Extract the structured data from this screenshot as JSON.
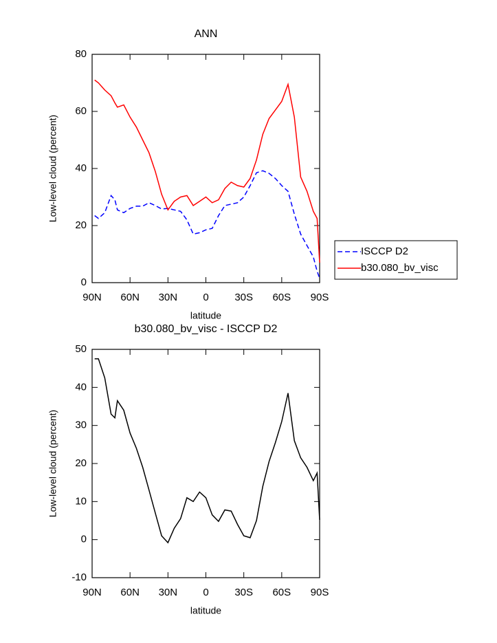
{
  "chart_data": [
    {
      "type": "line",
      "title": "ANN",
      "xlabel": "latitude",
      "ylabel": "Low-level cloud (percent)",
      "x": [
        88,
        85,
        80,
        75,
        72,
        70,
        65,
        60,
        55,
        50,
        45,
        40,
        35,
        30,
        25,
        20,
        15,
        10,
        5,
        0,
        -5,
        -10,
        -15,
        -20,
        -25,
        -30,
        -35,
        -40,
        -45,
        -50,
        -55,
        -60,
        -65,
        -70,
        -75,
        -80,
        -85,
        -88,
        -90
      ],
      "series": [
        {
          "name": "ISCCP D2",
          "color": "#0000ff",
          "line_style": "dashed",
          "values": [
            23.5,
            22.5,
            24.5,
            30.5,
            29,
            25.5,
            24.5,
            26,
            26.8,
            26.8,
            28,
            27,
            25.8,
            26,
            25.5,
            25,
            22,
            17,
            17.5,
            18.5,
            19,
            23.5,
            27,
            27.5,
            28,
            30,
            34,
            38.5,
            39.2,
            38.3,
            36.5,
            34,
            32,
            24,
            17,
            13,
            9,
            4,
            1.5
          ]
        },
        {
          "name": "b30.080_bv_visc",
          "color": "#ff0000",
          "line_style": "solid",
          "values": [
            71,
            70,
            67.5,
            65.5,
            63,
            61.5,
            62.3,
            58,
            54.5,
            50,
            45.5,
            39,
            31,
            25.5,
            28.5,
            30,
            30.5,
            27,
            28.5,
            30,
            28,
            29,
            33,
            35.2,
            34,
            33.5,
            36.5,
            43,
            52,
            57.5,
            60.5,
            63.5,
            69.5,
            58,
            37,
            32,
            25,
            22.5,
            7
          ]
        }
      ],
      "xlim": [
        90,
        -90
      ],
      "xticks": [
        {
          "value": 90,
          "label": "90N"
        },
        {
          "value": 60,
          "label": "60N"
        },
        {
          "value": 30,
          "label": "30N"
        },
        0,
        {
          "value": -30,
          "label": "30S"
        },
        {
          "value": -60,
          "label": "60S"
        },
        {
          "value": -90,
          "label": "90S"
        }
      ],
      "ylim": [
        0,
        80
      ],
      "yticks": [
        0,
        20,
        40,
        60,
        80
      ],
      "legend": "right"
    },
    {
      "type": "line",
      "title": "b30.080_bv_visc - ISCCP D2",
      "xlabel": "latitude",
      "ylabel": "Low-level cloud (percent)",
      "x": [
        88,
        85,
        80,
        75,
        72,
        70,
        65,
        60,
        55,
        50,
        45,
        40,
        35,
        30,
        25,
        20,
        15,
        10,
        5,
        0,
        -5,
        -10,
        -15,
        -20,
        -25,
        -30,
        -35,
        -40,
        -45,
        -50,
        -55,
        -60,
        -65,
        -70,
        -75,
        -80,
        -85,
        -88,
        -90
      ],
      "values": [
        47.5,
        47.5,
        42.5,
        33,
        32,
        36.5,
        34,
        28,
        24,
        19,
        13,
        7,
        1,
        -0.8,
        3,
        5.5,
        11,
        10,
        12.5,
        11,
        6.5,
        4.8,
        7.8,
        7.5,
        4,
        1,
        0.5,
        5,
        14,
        20.5,
        25.5,
        31,
        38.5,
        26,
        21.5,
        19,
        15.5,
        17.5,
        5.2
      ],
      "color": "#000000",
      "line_style": "solid",
      "xlim": [
        90,
        -90
      ],
      "xticks": [
        {
          "value": 90,
          "label": "90N"
        },
        {
          "value": 60,
          "label": "60N"
        },
        {
          "value": 30,
          "label": "30N"
        },
        0,
        {
          "value": -30,
          "label": "30S"
        },
        {
          "value": -60,
          "label": "60S"
        },
        {
          "value": -90,
          "label": "90S"
        }
      ],
      "ylim": [
        -10,
        50
      ],
      "yticks": [
        -10,
        0,
        10,
        20,
        30,
        40,
        50
      ]
    }
  ]
}
